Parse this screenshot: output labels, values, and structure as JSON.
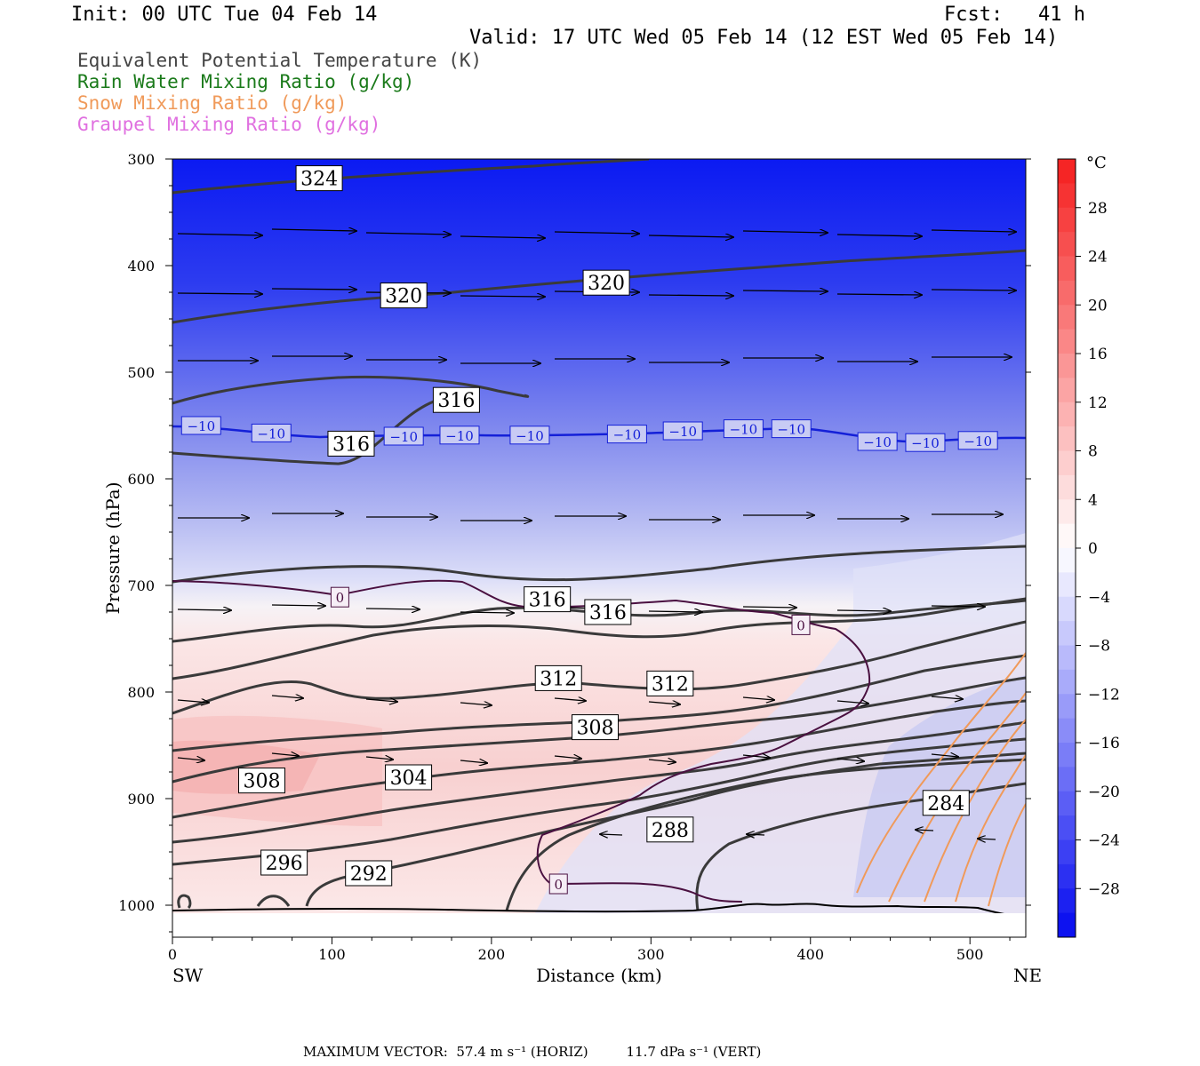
{
  "header": {
    "init": "Init: 00 UTC Tue 04 Feb 14",
    "fcst": "Fcst:   41 h",
    "valid": "Valid: 17 UTC Wed 05 Feb 14 (12 EST Wed 05 Feb 14)"
  },
  "legend": [
    {
      "text": "Equivalent Potential Temperature (K)",
      "color": "#444444"
    },
    {
      "text": "Rain Water Mixing Ratio (g/kg)",
      "color": "#1a7a1a"
    },
    {
      "text": "Snow Mixing Ratio (g/kg)",
      "color": "#f09a5a"
    },
    {
      "text": "Graupel Mixing Ratio (g/kg)",
      "color": "#e070e0"
    }
  ],
  "chart_data": {
    "type": "cross-section",
    "xlabel": "Distance (km)",
    "ylabel": "Pressure (hPa)",
    "x_ticks": [
      0,
      100,
      200,
      300,
      400,
      500
    ],
    "y_ticks": [
      300,
      400,
      500,
      600,
      700,
      800,
      900,
      1000
    ],
    "xlim": [
      0,
      535
    ],
    "ylim": [
      300,
      1030
    ],
    "x_end_labels": {
      "left": "SW",
      "right": "NE"
    },
    "colorbar": {
      "unit": "°C",
      "ticks": [
        28,
        24,
        20,
        16,
        12,
        8,
        4,
        0,
        -4,
        -8,
        -12,
        -16,
        -20,
        -24,
        -28
      ],
      "range": [
        -32,
        32
      ]
    },
    "theta_e_labels": [
      {
        "text": "324",
        "x": 92,
        "p": 318
      },
      {
        "text": "320",
        "x": 145,
        "p": 428
      },
      {
        "text": "320",
        "x": 272,
        "p": 416
      },
      {
        "text": "316",
        "x": 178,
        "p": 526
      },
      {
        "text": "316",
        "x": 112,
        "p": 567
      },
      {
        "text": "316",
        "x": 235,
        "p": 713
      },
      {
        "text": "316",
        "x": 273,
        "p": 725
      },
      {
        "text": "312",
        "x": 242,
        "p": 787
      },
      {
        "text": "312",
        "x": 312,
        "p": 792
      },
      {
        "text": "308",
        "x": 265,
        "p": 833
      },
      {
        "text": "308",
        "x": 56,
        "p": 883
      },
      {
        "text": "304",
        "x": 148,
        "p": 880
      },
      {
        "text": "296",
        "x": 70,
        "p": 960
      },
      {
        "text": "292",
        "x": 123,
        "p": 970
      },
      {
        "text": "288",
        "x": 312,
        "p": 929
      },
      {
        "text": "284",
        "x": 485,
        "p": 904
      }
    ],
    "temp_contour_labels": [
      {
        "text": "-10",
        "x": 18,
        "p": 550
      },
      {
        "text": "-10",
        "x": 62,
        "p": 557
      },
      {
        "text": "-10",
        "x": 145,
        "p": 560
      },
      {
        "text": "-10",
        "x": 180,
        "p": 559
      },
      {
        "text": "-10",
        "x": 224,
        "p": 559
      },
      {
        "text": "-10",
        "x": 285,
        "p": 558
      },
      {
        "text": "-10",
        "x": 320,
        "p": 555
      },
      {
        "text": "-10",
        "x": 358,
        "p": 553
      },
      {
        "text": "-10",
        "x": 388,
        "p": 553
      },
      {
        "text": "-10",
        "x": 442,
        "p": 565
      },
      {
        "text": "-10",
        "x": 472,
        "p": 566
      },
      {
        "text": "-10",
        "x": 505,
        "p": 564
      },
      {
        "text": "0",
        "x": 105,
        "p": 711
      },
      {
        "text": "0",
        "x": 394,
        "p": 737
      },
      {
        "text": "0",
        "x": 242,
        "p": 980
      }
    ]
  },
  "footer": {
    "max_vector": "MAXIMUM VECTOR:  57.4 m s⁻¹ (HORIZ)         11.7 dPa s⁻¹ (VERT)"
  }
}
